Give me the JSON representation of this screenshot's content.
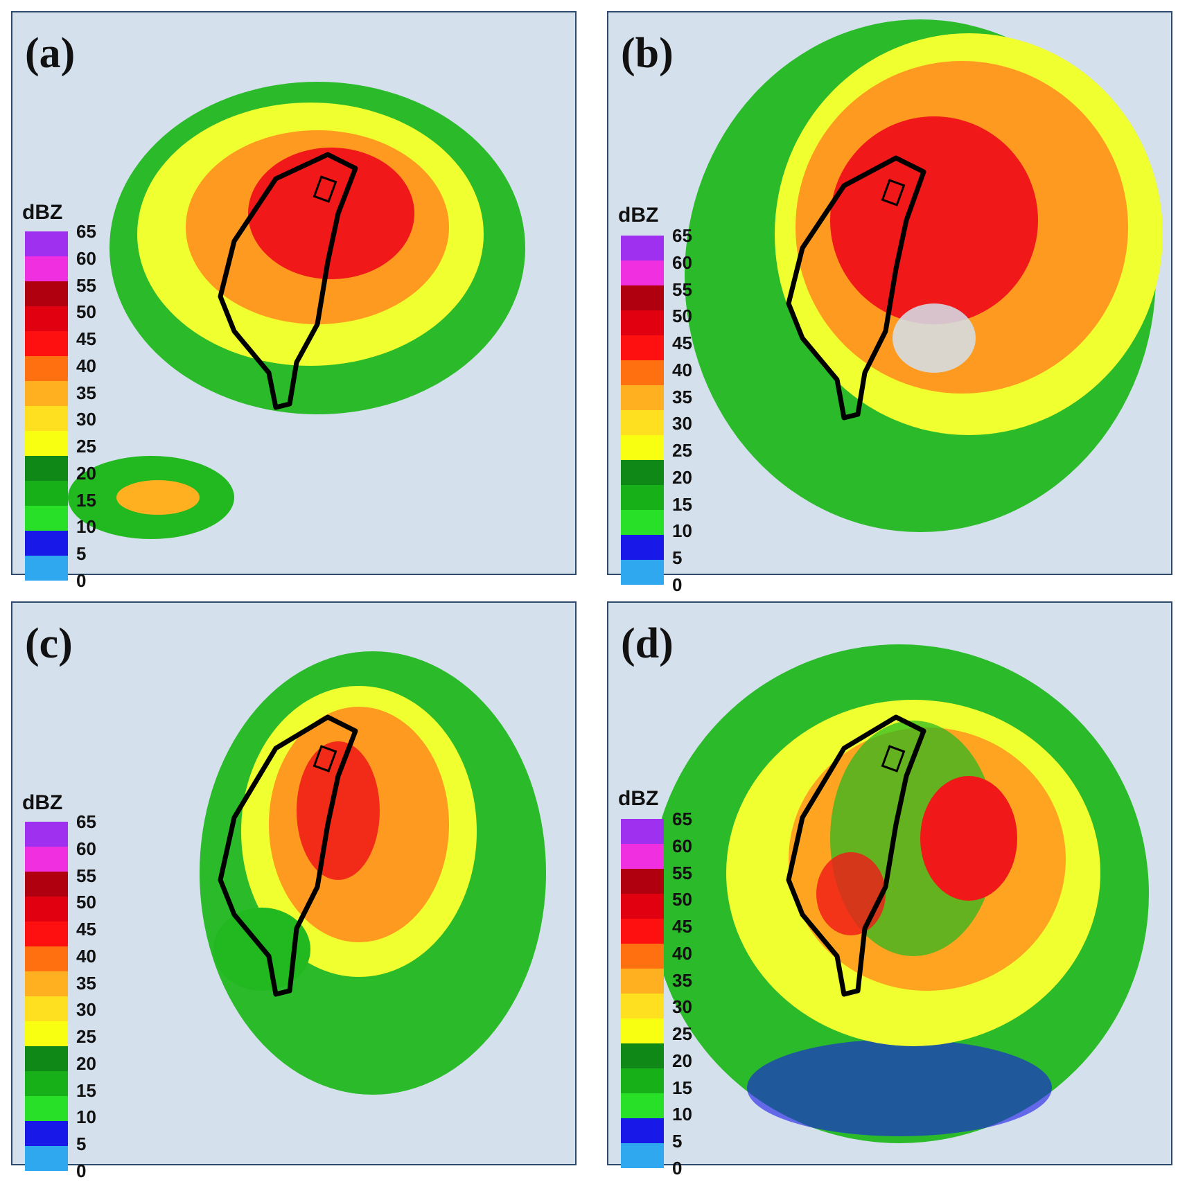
{
  "panels": [
    {
      "label": "(a)"
    },
    {
      "label": "(b)"
    },
    {
      "label": "(c)"
    },
    {
      "label": "(d)"
    }
  ],
  "colorbar": {
    "unit": "dBZ",
    "ticks": [
      "65",
      "60",
      "55",
      "50",
      "45",
      "40",
      "35",
      "30",
      "25",
      "20",
      "15",
      "10",
      "5",
      "0"
    ],
    "colors": [
      "#a030f0",
      "#f030e0",
      "#b00010",
      "#e00010",
      "#ff1010",
      "#ff7010",
      "#ffb020",
      "#ffe020",
      "#f8ff10",
      "#108818",
      "#18b018",
      "#28e028",
      "#1818e8",
      "#30a8f0"
    ]
  }
}
